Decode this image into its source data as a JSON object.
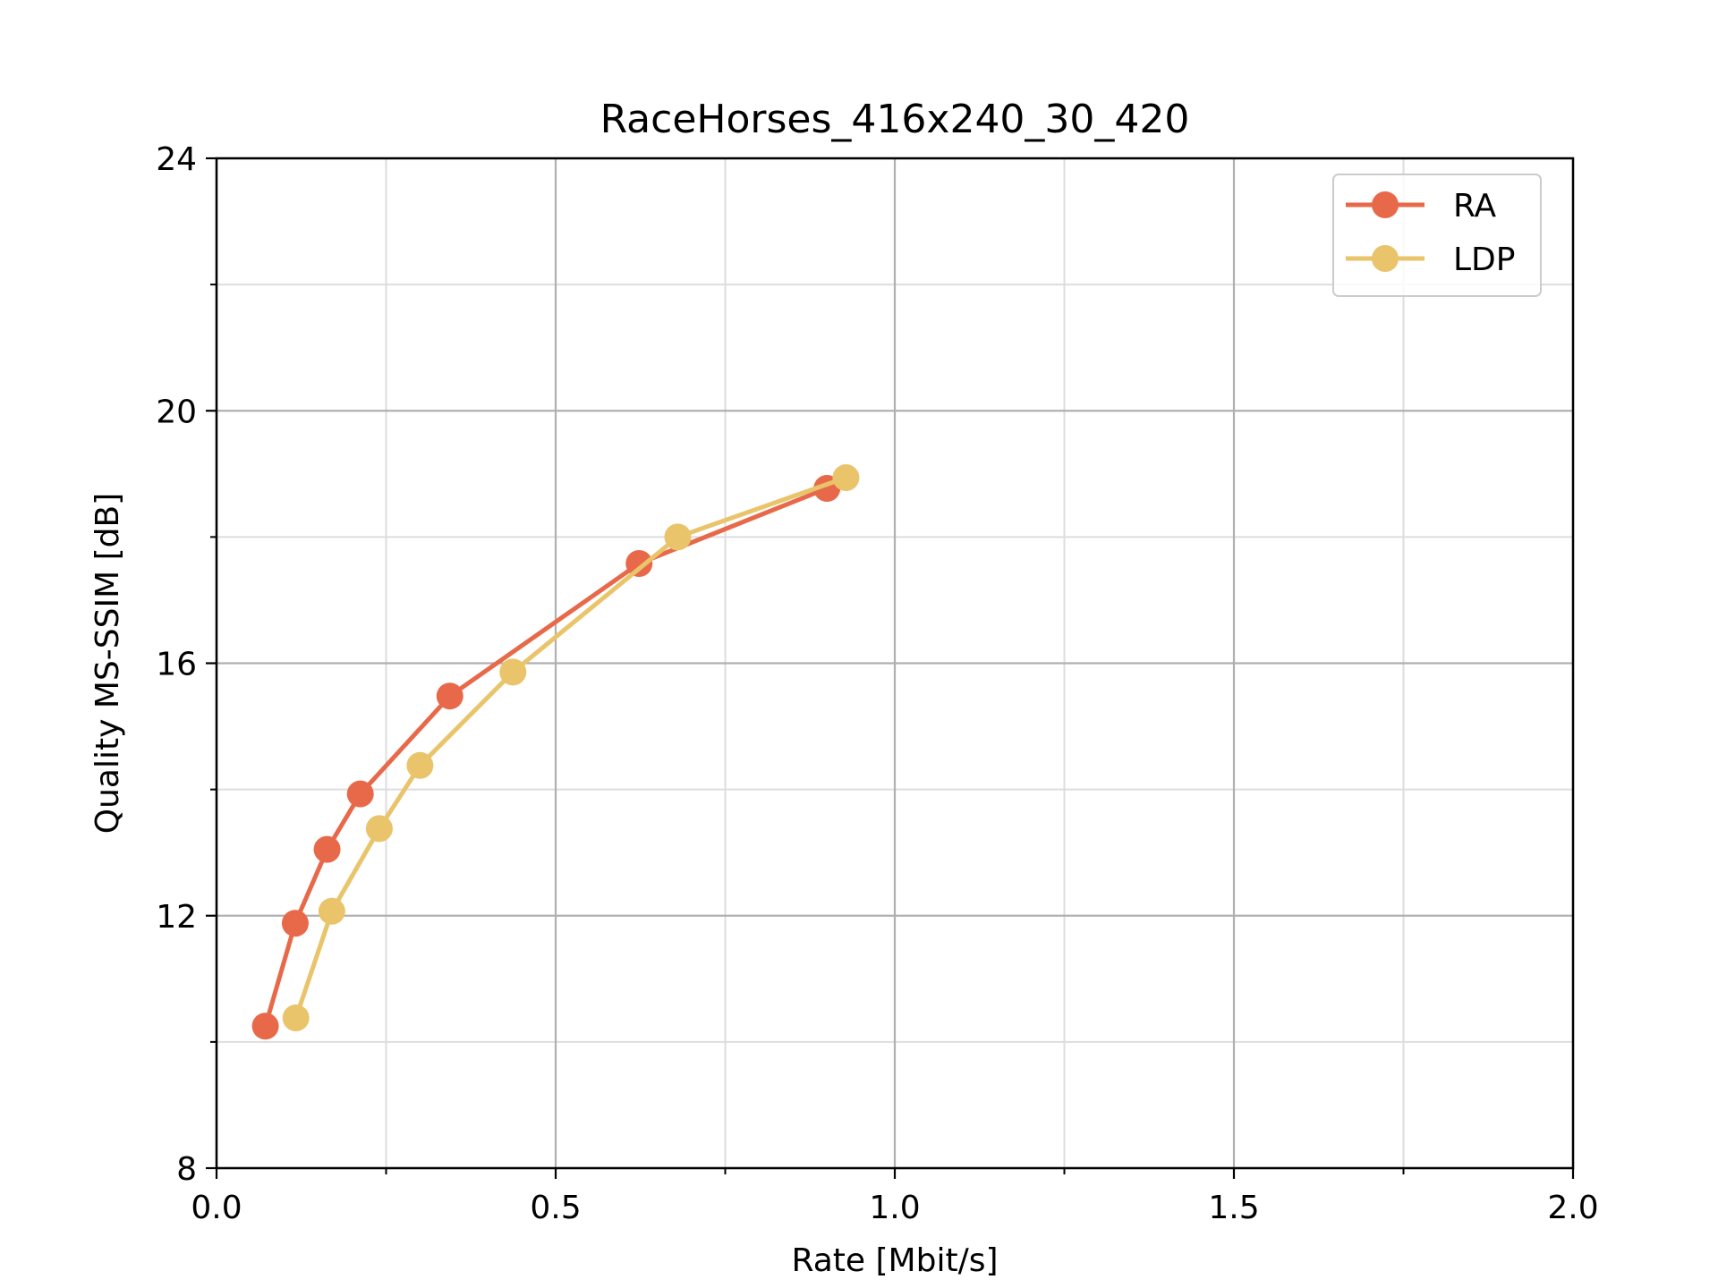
{
  "chart_data": {
    "type": "line",
    "title": "RaceHorses_416x240_30_420",
    "xlabel": "Rate [Mbit/s]",
    "ylabel": "Quality MS-SSIM [dB]",
    "xlim": [
      0.0,
      2.0
    ],
    "ylim": [
      8,
      24
    ],
    "xticks": [
      "0.0",
      "0.5",
      "1.0",
      "1.5",
      "2.0"
    ],
    "xtick_values": [
      0.0,
      0.5,
      1.0,
      1.5,
      2.0
    ],
    "yticks": [
      "8",
      "12",
      "16",
      "20",
      "24"
    ],
    "ytick_values": [
      8,
      12,
      16,
      20,
      24
    ],
    "x_minor": [
      0.25,
      0.75,
      1.25,
      1.75
    ],
    "y_minor": [
      10,
      14,
      18,
      22
    ],
    "grid": true,
    "legend_position": "top-right",
    "series": [
      {
        "name": "RA",
        "color": "#e8694a",
        "x": [
          0.072,
          0.116,
          0.163,
          0.212,
          0.344,
          0.623,
          0.9
        ],
        "y": [
          10.25,
          11.88,
          13.05,
          13.93,
          15.48,
          17.58,
          18.77
        ]
      },
      {
        "name": "LDP",
        "color": "#e9c46a",
        "x": [
          0.117,
          0.17,
          0.24,
          0.3,
          0.437,
          0.68,
          0.928
        ],
        "y": [
          10.38,
          12.07,
          13.38,
          14.38,
          15.86,
          18.0,
          18.94
        ]
      }
    ]
  }
}
